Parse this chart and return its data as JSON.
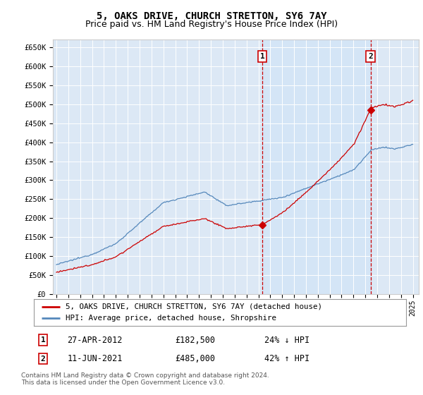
{
  "title": "5, OAKS DRIVE, CHURCH STRETTON, SY6 7AY",
  "subtitle": "Price paid vs. HM Land Registry's House Price Index (HPI)",
  "plot_bg_color": "#dce8f5",
  "ylim": [
    0,
    670000
  ],
  "yticks": [
    0,
    50000,
    100000,
    150000,
    200000,
    250000,
    300000,
    350000,
    400000,
    450000,
    500000,
    550000,
    600000,
    650000
  ],
  "ytick_labels": [
    "£0",
    "£50K",
    "£100K",
    "£150K",
    "£200K",
    "£250K",
    "£300K",
    "£350K",
    "£400K",
    "£450K",
    "£500K",
    "£550K",
    "£600K",
    "£650K"
  ],
  "xlim_start": 1994.7,
  "xlim_end": 2025.5,
  "xtick_years": [
    1995,
    1996,
    1997,
    1998,
    1999,
    2000,
    2001,
    2002,
    2003,
    2004,
    2005,
    2006,
    2007,
    2008,
    2009,
    2010,
    2011,
    2012,
    2013,
    2014,
    2015,
    2016,
    2017,
    2018,
    2019,
    2020,
    2021,
    2022,
    2023,
    2024,
    2025
  ],
  "hpi_color": "#5588bb",
  "price_color": "#cc0000",
  "shade_color": "#d0e4f7",
  "sale1_date": 2012.32,
  "sale1_price": 182500,
  "sale1_label": "1",
  "sale2_date": 2021.44,
  "sale2_price": 485000,
  "sale2_label": "2",
  "legend_line1": "5, OAKS DRIVE, CHURCH STRETTON, SY6 7AY (detached house)",
  "legend_line2": "HPI: Average price, detached house, Shropshire",
  "legend_color1": "#cc0000",
  "legend_color2": "#5588bb",
  "annotation1_date": "27-APR-2012",
  "annotation1_price": "£182,500",
  "annotation1_hpi": "24% ↓ HPI",
  "annotation2_date": "11-JUN-2021",
  "annotation2_price": "£485,000",
  "annotation2_hpi": "42% ↑ HPI",
  "footer": "Contains HM Land Registry data © Crown copyright and database right 2024.\nThis data is licensed under the Open Government Licence v3.0.",
  "title_fontsize": 10,
  "subtitle_fontsize": 9
}
